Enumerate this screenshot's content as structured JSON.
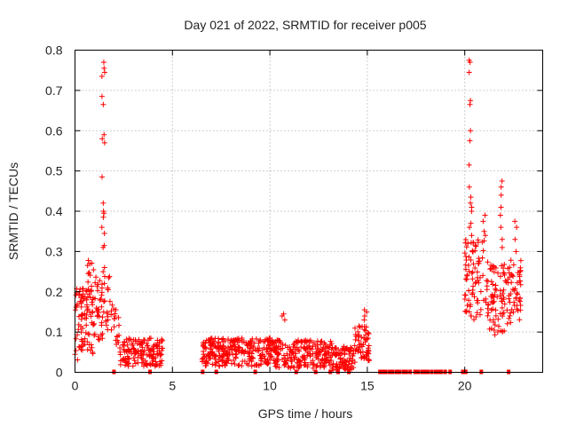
{
  "chart_data": {
    "type": "scatter",
    "title": "Day 021 of 2022, SRMTID for receiver p005",
    "xlabel": "GPS time / hours",
    "ylabel": "SRMTID / TECUs",
    "xlim": [
      0,
      24
    ],
    "ylim": [
      0,
      0.8
    ],
    "xticks": [
      0,
      5,
      10,
      15,
      20
    ],
    "yticks": [
      0,
      0.1,
      0.2,
      0.3,
      0.4,
      0.5,
      0.6,
      0.7,
      0.8
    ],
    "xtick_labels": [
      "0",
      "5",
      "10",
      "15",
      "20"
    ],
    "ytick_labels": [
      "0",
      "0.1",
      "0.2",
      "0.3",
      "0.4",
      "0.5",
      "0.6",
      "0.7",
      "0.8"
    ],
    "grid": true,
    "marker": "+",
    "marker_color": "#ff0000",
    "series": [
      {
        "name": "SRMTID",
        "segments": [
          {
            "x_start": 0.0,
            "x_end": 1.0,
            "count": 90,
            "base": 0.12,
            "spread": 0.09
          },
          {
            "x_start": 0.6,
            "x_end": 0.95,
            "count": 14,
            "base": 0.24,
            "spread": 0.05
          },
          {
            "x_start": 1.0,
            "x_end": 1.95,
            "count": 55,
            "base": 0.16,
            "spread": 0.08
          },
          {
            "x_start": 1.95,
            "x_end": 2.3,
            "count": 16,
            "base": 0.11,
            "spread": 0.05
          },
          {
            "x_start": 2.3,
            "x_end": 4.5,
            "count": 150,
            "base": 0.05,
            "spread": 0.035
          },
          {
            "x_start": 6.5,
            "x_end": 10.3,
            "count": 300,
            "base": 0.05,
            "spread": 0.035
          },
          {
            "x_start": 10.3,
            "x_end": 13.2,
            "count": 200,
            "base": 0.045,
            "spread": 0.035
          },
          {
            "x_start": 13.2,
            "x_end": 14.3,
            "count": 90,
            "base": 0.035,
            "spread": 0.03
          },
          {
            "x_start": 14.3,
            "x_end": 15.1,
            "count": 60,
            "base": 0.07,
            "spread": 0.045
          },
          {
            "x_start": 20.0,
            "x_end": 21.2,
            "count": 90,
            "base": 0.23,
            "spread": 0.1
          },
          {
            "x_start": 21.2,
            "x_end": 22.1,
            "count": 70,
            "base": 0.18,
            "spread": 0.09
          },
          {
            "x_start": 22.1,
            "x_end": 22.9,
            "count": 55,
            "base": 0.2,
            "spread": 0.08
          }
        ],
        "peaks": [
          {
            "x": 1.45,
            "y": [
              0.77,
              0.755,
              0.745,
              0.735,
              0.685,
              0.665,
              0.59,
              0.58,
              0.57,
              0.485,
              0.42,
              0.4,
              0.395,
              0.385,
              0.36,
              0.345,
              0.315,
              0.31,
              0.26,
              0.25
            ]
          },
          {
            "x": 20.3,
            "y": [
              0.775,
              0.77,
              0.745,
              0.675,
              0.665,
              0.6,
              0.575,
              0.515,
              0.46,
              0.435,
              0.42,
              0.41,
              0.4,
              0.37,
              0.36,
              0.34
            ]
          },
          {
            "x": 21.9,
            "y": [
              0.475,
              0.46,
              0.44,
              0.41,
              0.39,
              0.36,
              0.33,
              0.31
            ]
          },
          {
            "x": 21.0,
            "y": [
              0.39,
              0.375,
              0.35,
              0.34
            ]
          },
          {
            "x": 22.6,
            "y": [
              0.375,
              0.36,
              0.33,
              0.3
            ]
          },
          {
            "x": 10.7,
            "y": [
              0.145,
              0.14,
              0.13
            ]
          },
          {
            "x": 14.9,
            "y": [
              0.155,
              0.15,
              0.14,
              0.13
            ]
          }
        ],
        "zero_points_x": [
          2.0,
          3.85,
          6.55,
          7.25,
          9.25,
          11.35,
          12.35,
          13.1,
          13.5,
          14.05,
          15.65,
          15.8,
          15.95,
          16.15,
          16.3,
          16.5,
          16.65,
          16.85,
          17.0,
          17.2,
          17.45,
          17.6,
          17.8,
          17.95,
          18.1,
          18.3,
          18.5,
          18.65,
          18.8,
          19.0,
          19.25,
          19.9,
          20.05,
          20.85,
          22.25
        ]
      }
    ]
  }
}
